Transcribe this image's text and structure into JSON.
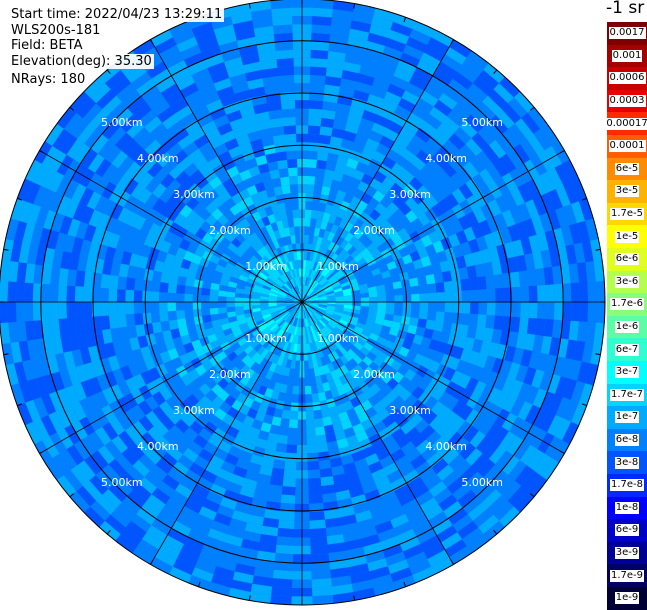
{
  "header": {
    "start_time": "Start time: 2022/04/23 13:29:11",
    "instrument": "WLS200s-181",
    "field": "Field: BETA",
    "elevation": "Elevation(deg): 35.30",
    "nrays": "NRays: 180"
  },
  "colorbar": {
    "unit_label": "-1 sr",
    "labels": [
      "0.0017",
      "0.001",
      "0.0006",
      "0.0003",
      "0.00017",
      "0.0001",
      "6e-5",
      "3e-5",
      "1.7e-5",
      "1e-5",
      "6e-6",
      "3e-6",
      "1.7e-6",
      "1e-6",
      "6e-7",
      "3e-7",
      "1.7e-7",
      "1e-7",
      "6e-8",
      "3e-8",
      "1.7e-8",
      "1e-8",
      "6e-9",
      "3e-9",
      "1.7e-9",
      "1e-9"
    ],
    "colors": [
      "#7f0000",
      "#a50000",
      "#c80000",
      "#e80000",
      "#ff2a00",
      "#ff5e00",
      "#ff8c00",
      "#ffb300",
      "#ffd700",
      "#ffff00",
      "#e1ff1e",
      "#b4ff4b",
      "#87ff78",
      "#5affa5",
      "#2dffd2",
      "#00ffff",
      "#00d4ff",
      "#00aaff",
      "#007fff",
      "#0055ff",
      "#002aff",
      "#0000ff",
      "#0000c8",
      "#000096",
      "#000064",
      "#000037"
    ]
  },
  "chart_data": {
    "type": "heatmap",
    "projection": "polar (PPI scan)",
    "field": "BETA",
    "elevation_deg": 35.3,
    "n_rays": 180,
    "range_rings_km": [
      1,
      2,
      3,
      4,
      5
    ],
    "ring_labels": [
      "1.00km",
      "2.00km",
      "3.00km",
      "4.00km",
      "5.00km"
    ],
    "max_range_km": 5.8,
    "radial_spokes_deg": [
      0,
      30,
      60,
      90,
      120,
      150,
      180,
      210,
      240,
      270,
      300,
      330
    ],
    "grid": true,
    "colorscale": "jet, log scale",
    "legend_position": "right",
    "value_range": [
      1e-09,
      0.0017
    ],
    "dominant_values": [
      {
        "range_km": [
          0,
          1
        ],
        "approx_value": "3e-7"
      },
      {
        "range_km": [
          1,
          3
        ],
        "approx_value": "1e-7"
      },
      {
        "range_km": [
          3,
          5.8
        ],
        "approx_value": "6e-8"
      }
    ]
  }
}
